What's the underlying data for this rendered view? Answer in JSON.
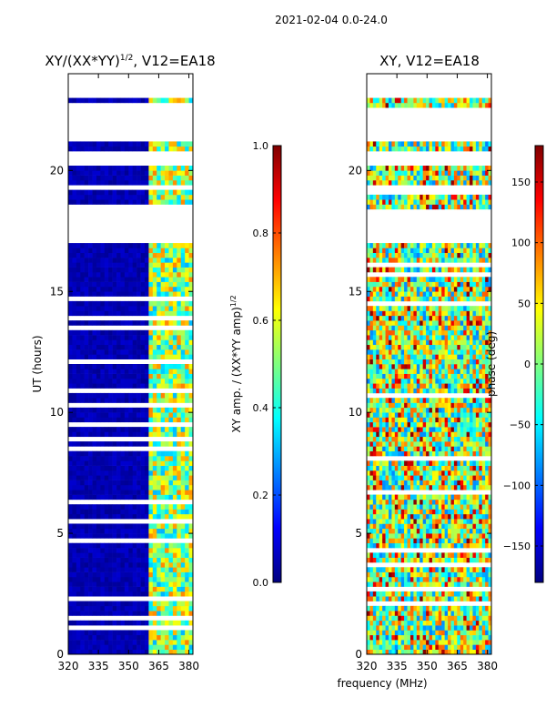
{
  "figure_title": "2021-02-04 0.0-24.0",
  "shared_xlabel": "frequency (MHz)",
  "chart_data": [
    {
      "type": "heatmap",
      "title_main": "XY/(XX*YY)",
      "title_exp": "1/2",
      "title_rest": ", V12=EA18",
      "xlabel": "",
      "ylabel": "UT (hours)",
      "xlim": [
        320,
        382
      ],
      "ylim": [
        0,
        24
      ],
      "xticks": [
        320,
        335,
        350,
        365,
        380
      ],
      "yticks": [
        0,
        5,
        10,
        15,
        20
      ],
      "colorbar": {
        "label_main": "XY amp. / (XX*YY amp)",
        "label_exp": "1/2",
        "range": [
          0.0,
          1.0
        ],
        "ticks": [
          "0.0",
          "0.2",
          "0.4",
          "0.6",
          "0.8",
          "1.0"
        ],
        "tick_values": [
          0.0,
          0.2,
          0.4,
          0.6,
          0.8,
          1.0
        ]
      },
      "blank_time_ranges_hours": [
        [
          17.0,
          18.3
        ],
        [
          19.3,
          19.5
        ],
        [
          20.2,
          20.8
        ],
        [
          21.2,
          22.6
        ],
        [
          23.0,
          24.0
        ]
      ],
      "active_band_mhz": [
        360,
        382
      ],
      "background_value": 0.0
    },
    {
      "type": "heatmap",
      "title_main": "XY, V12=EA18",
      "xlabel": "",
      "ylabel": "",
      "xlim": [
        320,
        382
      ],
      "ylim": [
        0,
        24
      ],
      "xticks": [
        320,
        335,
        350,
        365,
        380
      ],
      "yticks": [
        0,
        5,
        10,
        15,
        20
      ],
      "colorbar": {
        "label_main": "phase (deg)",
        "range": [
          -180,
          180
        ],
        "ticks": [
          "−150",
          "−100",
          "−50",
          "0",
          "50",
          "100",
          "150"
        ],
        "tick_values": [
          -150,
          -100,
          -50,
          0,
          50,
          100,
          150
        ]
      },
      "blank_time_ranges_hours": [
        [
          17.0,
          18.3
        ],
        [
          19.3,
          19.5
        ],
        [
          20.2,
          20.8
        ],
        [
          21.2,
          22.6
        ],
        [
          23.0,
          24.0
        ]
      ]
    }
  ]
}
